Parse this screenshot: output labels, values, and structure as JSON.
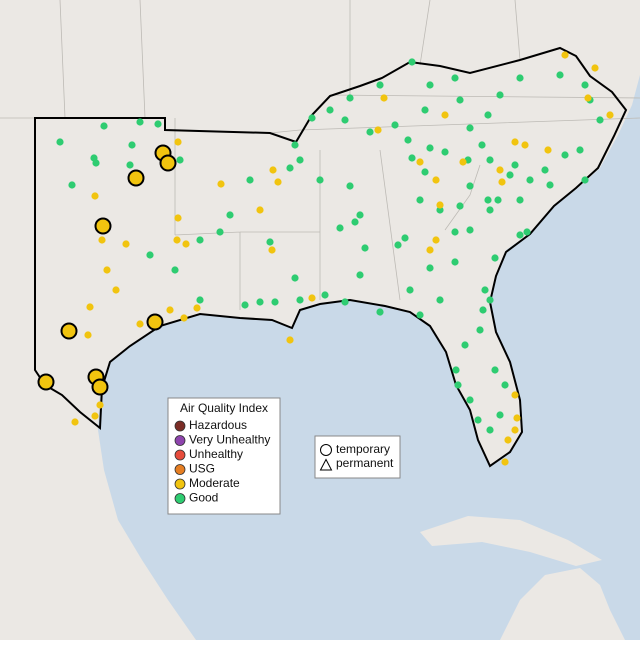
{
  "legend": {
    "title": "Air Quality Index",
    "items": [
      "Hazardous",
      "Very Unhealthy",
      "Unhealthy",
      "USG",
      "Moderate",
      "Good"
    ],
    "colors": [
      "#7b2d26",
      "#8e44ad",
      "#e74c3c",
      "#e67e22",
      "#f1c40f",
      "#2ecc71"
    ]
  },
  "shape_legend": {
    "items": [
      "temporary",
      "permanent"
    ]
  }
}
